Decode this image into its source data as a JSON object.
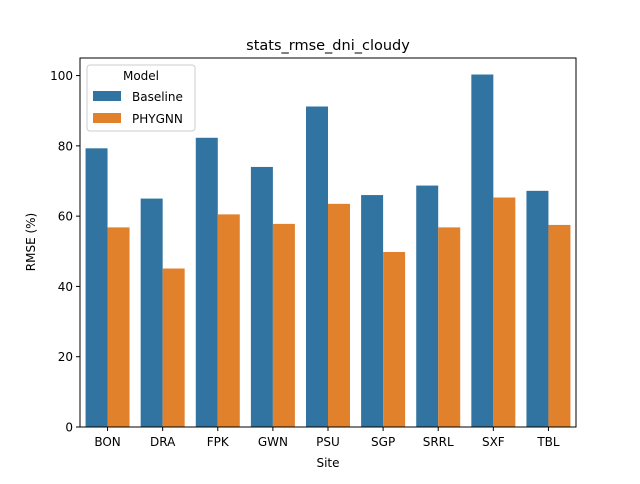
{
  "chart_data": {
    "type": "bar",
    "title": "stats_rmse_dni_cloudy",
    "xlabel": "Site",
    "ylabel": "RMSE (%)",
    "categories": [
      "BON",
      "DRA",
      "FPK",
      "GWN",
      "PSU",
      "SGP",
      "SRRL",
      "SXF",
      "TBL"
    ],
    "series": [
      {
        "name": "Baseline",
        "color": "#3274a1",
        "values": [
          79.3,
          65.0,
          82.3,
          74.0,
          91.2,
          66.0,
          68.7,
          100.3,
          67.2
        ]
      },
      {
        "name": "PHYGNN",
        "color": "#e1812c",
        "values": [
          56.8,
          45.1,
          60.5,
          57.8,
          63.5,
          49.8,
          56.8,
          65.3,
          57.5
        ]
      }
    ],
    "ylim": [
      0,
      105
    ],
    "yticks": [
      0,
      20,
      40,
      60,
      80,
      100
    ],
    "grid": false,
    "legend": {
      "title": "Model",
      "placement": "top-left"
    }
  }
}
